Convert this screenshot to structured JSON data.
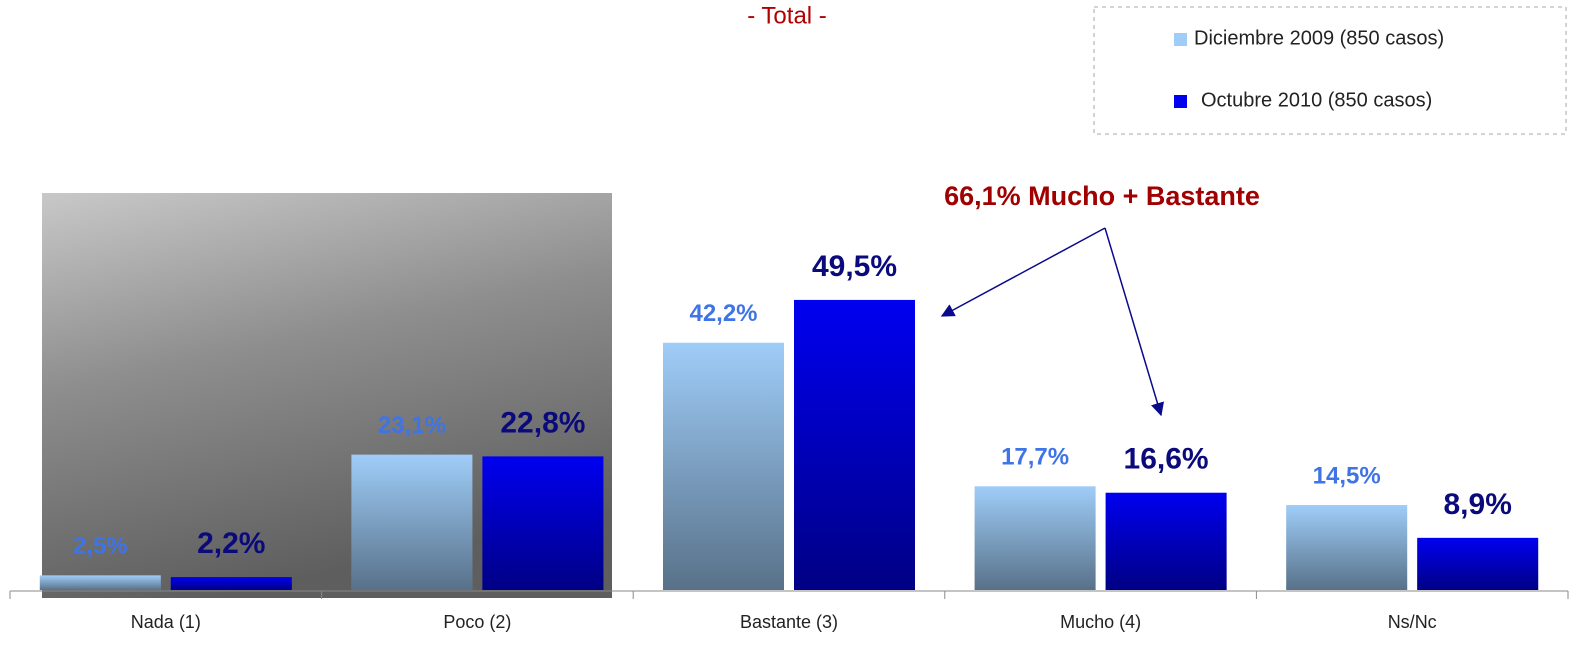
{
  "chart_data": {
    "type": "bar",
    "title": "- Total -",
    "annotation": "66,1% Mucho + Bastante",
    "categories": [
      "Nada (1)",
      "Poco (2)",
      "Bastante (3)",
      "Mucho (4)",
      "Ns/Nc"
    ],
    "series": [
      {
        "name": "Diciembre 2009 (850 casos)",
        "color": "#9fcdf8",
        "values": [
          2.5,
          23.1,
          42.2,
          17.7,
          14.5
        ],
        "value_labels": [
          "2,5%",
          "23,1%",
          "42,2%",
          "17,7%",
          "14,5%"
        ]
      },
      {
        "name": "Octubre 2010 (850 casos)",
        "color": "#0000f0",
        "values": [
          2.2,
          22.8,
          49.5,
          16.6,
          8.9
        ],
        "value_labels": [
          "2,2%",
          "22,8%",
          "49,5%",
          "16,6%",
          "8,9%"
        ]
      }
    ],
    "ylim": [
      0,
      50
    ],
    "legend": "top-right"
  }
}
